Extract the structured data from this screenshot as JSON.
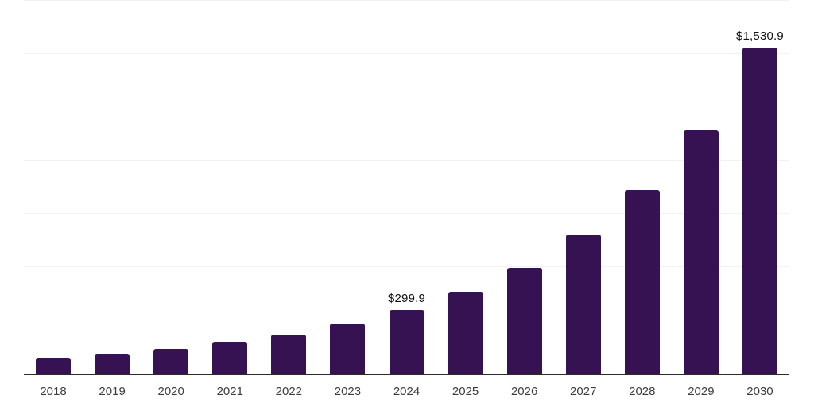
{
  "chart_data": {
    "type": "bar",
    "title": "",
    "xlabel": "",
    "ylabel": "",
    "categories": [
      "2018",
      "2019",
      "2020",
      "2021",
      "2022",
      "2023",
      "2024",
      "2025",
      "2026",
      "2027",
      "2028",
      "2029",
      "2030"
    ],
    "values": [
      75,
      95,
      117,
      148,
      184,
      234,
      299.9,
      384,
      498,
      654,
      861,
      1143,
      1530.9
    ],
    "data_labels": {
      "2024": "$299.9",
      "2030": "$1,530.9"
    },
    "ylim": [
      0,
      1750
    ],
    "grid_interval": 250,
    "grid": "horizontal",
    "legend": "none",
    "y_axis_labels_visible": false
  },
  "colors": {
    "background": "#ffffff",
    "bar": "#371253",
    "axis_line": "#2b2b2b",
    "gridline": "#f2f2f3",
    "tick_label": "#3d3d3d",
    "data_label": "#111111"
  }
}
